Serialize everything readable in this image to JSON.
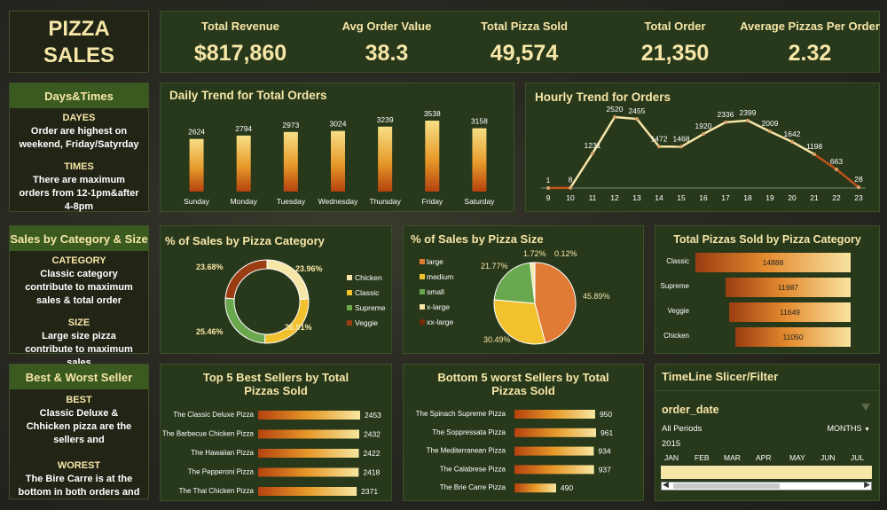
{
  "title": {
    "line1": "PIZZA",
    "line2": "SALES"
  },
  "kpis": [
    {
      "label": "Total Revenue",
      "value": "$817,860"
    },
    {
      "label": "Avg Order Value",
      "value": "38.3"
    },
    {
      "label": "Total Pizza Sold",
      "value": "49,574"
    },
    {
      "label": "Total Order",
      "value": "21,350"
    },
    {
      "label": "Average Pizzas Per Order",
      "value": "2.32"
    }
  ],
  "side": {
    "days_times": {
      "head": "Days&Times",
      "h1": "DAYES",
      "t1": "Order are highest on weekend, Friday/Satyrday",
      "h2": "TIMES",
      "t2": "There are maximum orders from 12-1pm&after 4-8pm"
    },
    "category_size": {
      "head": "Sales by Category & Size",
      "h1": "CATEGORY",
      "t1": "Classic category contribute to maximum sales & total order",
      "h2": "SIZE",
      "t2": "Large size pizza contribute to maximum sales"
    },
    "best_worst": {
      "head": "Best & Worst Seller",
      "h1": "BEST",
      "t1": "Classic Deluxe & Chhicken pizza are the sellers and",
      "h2": "WOREST",
      "t2": "The Bire Carre is at the bottom in both orders and"
    }
  },
  "colors": {
    "gold": "#f6e6a8",
    "panel": "#28381b",
    "orange": "#e07a35",
    "yellow": "#f2c12e",
    "green": "#6aa84f",
    "brown": "#9a3d12"
  },
  "slicer": {
    "title": "TimeLine Slicer/Filter",
    "field": "order_date",
    "period_label": "All Periods",
    "level": "MONTHS",
    "year": "2015",
    "months": [
      "JAN",
      "FEB",
      "MAR",
      "APR",
      "MAY",
      "JUN",
      "JUL"
    ]
  },
  "chart_data": [
    {
      "id": "daily",
      "type": "bar",
      "title": "Daily Trend for Total Orders",
      "categories": [
        "Sunday",
        "Monday",
        "Tuesday",
        "Wednesday",
        "Thursday",
        "Friday",
        "Saturday"
      ],
      "values": [
        2624,
        2794,
        2973,
        3024,
        3239,
        3538,
        3158
      ]
    },
    {
      "id": "hourly",
      "type": "line",
      "title": "Hourly Trend for Orders",
      "x": [
        "9",
        "10",
        "11",
        "12",
        "13",
        "14",
        "15",
        "16",
        "17",
        "18",
        "19",
        "20",
        "21",
        "22",
        "23"
      ],
      "values": [
        1,
        8,
        1231,
        2520,
        2455,
        1472,
        1468,
        1920,
        2336,
        2399,
        2009,
        1642,
        1198,
        663,
        28
      ]
    },
    {
      "id": "category",
      "type": "pie",
      "title": "% of Sales by Pizza Category",
      "labels": [
        "Chicken",
        "Classic",
        "Supreme",
        "Veggie"
      ],
      "values": [
        23.96,
        26.91,
        25.46,
        23.68
      ],
      "value_labels": [
        "23.96%",
        "26.91%",
        "25.46%",
        "23.68%"
      ]
    },
    {
      "id": "size",
      "type": "pie",
      "title": "% of Sales by Pizza Size",
      "labels": [
        "large",
        "medium",
        "small",
        "x-large",
        "xx-large"
      ],
      "values": [
        45.89,
        30.49,
        21.77,
        1.72,
        0.12
      ],
      "value_labels": [
        "45.89%",
        "30.49%",
        "21.77%",
        "1.72%",
        "0.12%"
      ]
    },
    {
      "id": "catqty",
      "type": "bar",
      "title": "Total Pizzas Sold by Pizza Category",
      "categories": [
        "Classic",
        "Supreme",
        "Veggie",
        "Chicken"
      ],
      "values": [
        14888,
        11987,
        11649,
        11050
      ]
    },
    {
      "id": "top5",
      "type": "bar",
      "title": "Top 5 Best Sellers by Total Pizzas Sold",
      "categories": [
        "The Classic Deluxe Pizza",
        "The Barbecue Chicken Pizza",
        "The Hawaiian Pizza",
        "The Pepperoni Pizza",
        "The Thai Chicken Pizza"
      ],
      "values": [
        2453,
        2432,
        2422,
        2418,
        2371
      ]
    },
    {
      "id": "bottom5",
      "type": "bar",
      "title": "Bottom 5 worst Sellers by Total Pizzas Sold",
      "categories": [
        "The Spinach Supreme Pizza",
        "The Soppressata Pizza",
        "The Mediterranean Pizza",
        "The Calabrese Pizza",
        "The Brie Carre Pizza"
      ],
      "values": [
        950,
        961,
        934,
        937,
        490
      ]
    }
  ]
}
